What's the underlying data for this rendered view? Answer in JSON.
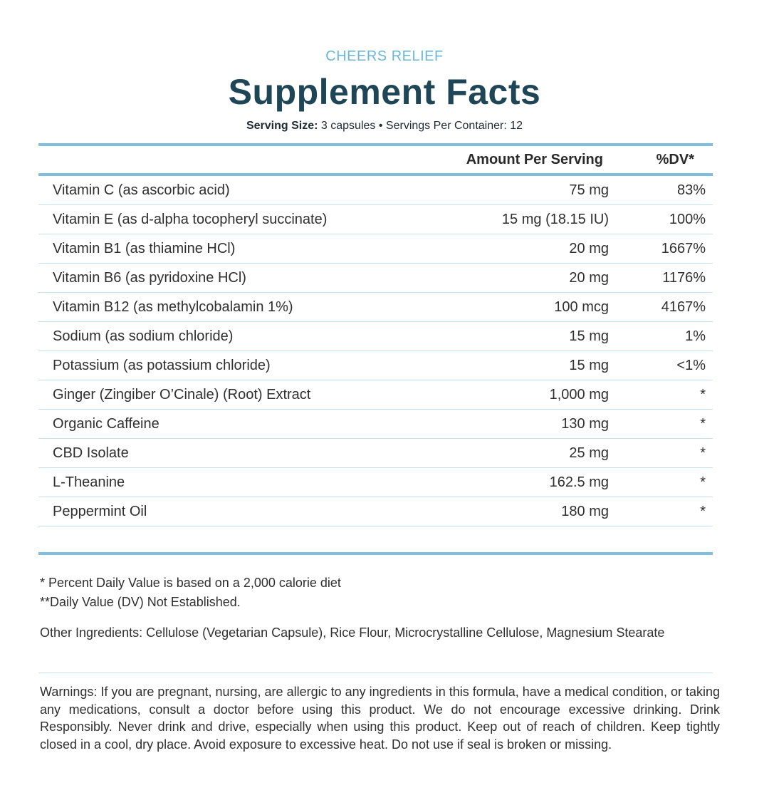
{
  "brand": "CHEERS RELIEF",
  "title": "Supplement Facts",
  "serving": {
    "size_label": "Serving Size:",
    "size_value": "3 capsules",
    "separator": "•",
    "per_container_label": "Servings Per Container:",
    "per_container_value": "12"
  },
  "table": {
    "header_amount": "Amount Per Serving",
    "header_dv": "%DV*",
    "rows": [
      {
        "name": "Vitamin C (as ascorbic acid)",
        "amount": "75 mg",
        "dv": "83%"
      },
      {
        "name": "Vitamin E (as d-alpha tocopheryl succinate)",
        "amount": "15 mg (18.15 IU)",
        "dv": "100%"
      },
      {
        "name": "Vitamin B1 (as thiamine HCl)",
        "amount": "20 mg",
        "dv": "1667%"
      },
      {
        "name": "Vitamin B6 (as pyridoxine HCl)",
        "amount": "20 mg",
        "dv": "1176%"
      },
      {
        "name": "Vitamin B12 (as methylcobalamin 1%)",
        "amount": "100 mcg",
        "dv": "4167%"
      },
      {
        "name": "Sodium (as sodium chloride)",
        "amount": "15 mg",
        "dv": "1%"
      },
      {
        "name": "Potassium (as potassium chloride)",
        "amount": "15 mg",
        "dv": "<1%"
      },
      {
        "name": "Ginger (Zingiber O’Cinale) (Root) Extract",
        "amount": "1,000 mg",
        "dv": "*"
      },
      {
        "name": "Organic Caffeine",
        "amount": "130 mg",
        "dv": "*"
      },
      {
        "name": "CBD Isolate",
        "amount": "25 mg",
        "dv": "*"
      },
      {
        "name": "L-Theanine",
        "amount": "162.5 mg",
        "dv": "*"
      },
      {
        "name": "Peppermint Oil",
        "amount": "180 mg",
        "dv": "*"
      }
    ]
  },
  "footnotes": {
    "dv_note": "* Percent Daily Value is based on a 2,000 calorie diet",
    "not_established": "**Daily Value (DV) Not Established."
  },
  "other_ingredients": "Other Ingredients: Cellulose (Vegetarian Capsule), Rice Flour, Microcrystalline Cellulose, Magnesium Stearate",
  "warnings": "Warnings: If you are pregnant, nursing, are allergic to any ingredients in this formula, have a medical condition, or taking any medications, consult a doctor before using this product. We do not encourage excessive drinking. Drink Responsibly. Never drink and drive, especially when using this product. Keep out of reach of children. Keep tightly closed in a cool, dry place. Avoid exposure to excessive heat. Do not use if seal is broken or missing.",
  "colors": {
    "brand": "#6bb6d6",
    "title": "#1f4656",
    "rule": "#7fbfdd",
    "row_divider": "#c6e0ec"
  }
}
